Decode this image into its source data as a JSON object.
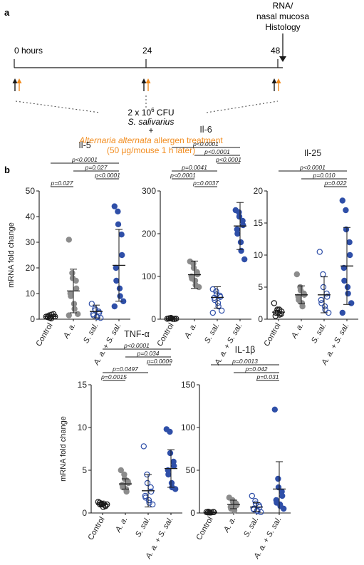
{
  "panel_a": {
    "letter": "a",
    "timepoints": [
      "0 hours",
      "24",
      "48"
    ],
    "endpoint_label_1": "RNA/",
    "endpoint_label_2": "nasal mucosa",
    "endpoint_label_3": "Histology",
    "dose_prefix": "2 x 10",
    "dose_exp": "6",
    "dose_suffix": " CFU",
    "species": "S. salivarius",
    "plus": "+",
    "allergen_species": "Alternaria alternata",
    "allergen_rest": " allergen treatment",
    "allergen_dose": "(50 μg/mouse 1 h later)",
    "colors": {
      "black_arrow": "#1a1a1a",
      "orange_arrow": "#f28c1e",
      "allergen_text": "#f28c1e"
    }
  },
  "panel_b": {
    "letter": "b"
  },
  "y_axis_label": "mRNA fold change",
  "categories": [
    "Control",
    "A. a.",
    "S. sal.",
    "A. a. + S. sal."
  ],
  "category_italic": [
    false,
    true,
    true,
    true
  ],
  "series_style": {
    "Control": {
      "color": "#1a1a1a",
      "fill": "none"
    },
    "A. a.": {
      "color": "#8c8c8c",
      "fill": "#8c8c8c"
    },
    "S. sal.": {
      "color": "#2f4fa8",
      "fill": "none"
    },
    "A. a. + S. sal.": {
      "color": "#2f4fa8",
      "fill": "#2f4fa8"
    }
  },
  "chart_data": [
    {
      "type": "scatter",
      "title": "Il-5",
      "ylabel": "mRNA fold change",
      "ylim": [
        0,
        50
      ],
      "yticks": [
        0,
        10,
        20,
        30,
        40,
        50
      ],
      "categories": [
        "Control",
        "A. a.",
        "S. sal.",
        "A. a. + S. sal."
      ],
      "points": [
        [
          1,
          1.5,
          0.5,
          1,
          2,
          0.8,
          1.2,
          0.3,
          1.8,
          1
        ],
        [
          31,
          18,
          16,
          15,
          12,
          10,
          9,
          6,
          4,
          2,
          1.5
        ],
        [
          6,
          4,
          3.5,
          3,
          2.5,
          2,
          1.5,
          1,
          0.8,
          0.5
        ],
        [
          44,
          42,
          37,
          33,
          25,
          20,
          15,
          12,
          9,
          7,
          5
        ]
      ],
      "mean": [
        1,
        11,
        3,
        21
      ],
      "sd": [
        0.6,
        8.5,
        2.5,
        14
      ],
      "comparisons": [
        {
          "from": 0,
          "to": 3,
          "p": "p<0.0001"
        },
        {
          "from": 1,
          "to": 3,
          "p": "p=0.027"
        },
        {
          "from": 2,
          "to": 3,
          "p": "p<0.0001"
        },
        {
          "from": 0,
          "to": 1,
          "p": "p=0.027"
        }
      ]
    },
    {
      "type": "scatter",
      "title": "Il-6",
      "ylabel": "",
      "ylim": [
        0,
        300
      ],
      "yticks": [
        0,
        100,
        200,
        300
      ],
      "categories": [
        "Control",
        "A. a.",
        "S. sal.",
        "A. a. + S. sal."
      ],
      "points": [
        [
          1,
          2,
          3,
          1,
          0.5,
          1.5,
          2,
          1,
          0.8,
          1.2
        ],
        [
          135,
          130,
          120,
          110,
          105,
          100,
          95,
          90,
          80,
          75
        ],
        [
          70,
          65,
          58,
          55,
          52,
          50,
          45,
          38,
          30,
          20,
          15
        ],
        [
          255,
          250,
          240,
          230,
          220,
          210,
          200,
          180,
          160,
          140
        ]
      ],
      "mean": [
        1,
        104,
        51,
        218
      ],
      "sd": [
        1,
        32,
        25,
        55
      ],
      "comparisons": [
        {
          "from": 0,
          "to": 3,
          "p": "p<0.0001"
        },
        {
          "from": 1,
          "to": 3,
          "p": "p<0.0001"
        },
        {
          "from": 2,
          "to": 3,
          "p": "p<0.0001"
        },
        {
          "from": 0,
          "to": 2,
          "p": "p=0.0041"
        },
        {
          "from": 0,
          "to": 1,
          "p": "p<0.0001"
        },
        {
          "from": 1,
          "to": 2,
          "p": "p=0.0037"
        }
      ]
    },
    {
      "type": "scatter",
      "title": "Il-25",
      "ylabel": "",
      "ylim": [
        0,
        20
      ],
      "yticks": [
        0,
        5,
        10,
        15,
        20
      ],
      "categories": [
        "Control",
        "A. a.",
        "S. sal.",
        "A. a. + S. sal."
      ],
      "points": [
        [
          2.5,
          1.5,
          1,
          0.8,
          1.2,
          0.5,
          1,
          1.5,
          0.7
        ],
        [
          7,
          5,
          4.5,
          4,
          3.8,
          3.5,
          3,
          2.5,
          2
        ],
        [
          10.5,
          7,
          5,
          4,
          3.5,
          3,
          2.5,
          2,
          1.5,
          1
        ],
        [
          18.5,
          17,
          14,
          12,
          10,
          8,
          6,
          5,
          4,
          2.5,
          1
        ]
      ],
      "mean": [
        1.1,
        3.8,
        3.8,
        8.3
      ],
      "sd": [
        0.5,
        1.4,
        2.8,
        6
      ],
      "comparisons": [
        {
          "from": 0,
          "to": 3,
          "p": "p<0.0001"
        },
        {
          "from": 1,
          "to": 3,
          "p": "p=0.010"
        },
        {
          "from": 2,
          "to": 3,
          "p": "p=0.022"
        }
      ]
    },
    {
      "type": "scatter",
      "title": "TNF-α",
      "ylabel": "mRNA fold change",
      "ylim": [
        0,
        15
      ],
      "yticks": [
        0,
        5,
        10,
        15
      ],
      "categories": [
        "Control",
        "A. a.",
        "S. sal.",
        "A. a. + S. sal."
      ],
      "points": [
        [
          1.3,
          1.1,
          1,
          0.9,
          0.8,
          1.2,
          1,
          0.7,
          1.1,
          1
        ],
        [
          5,
          4.5,
          4,
          3.7,
          3.5,
          3.3,
          3,
          2.8,
          2.5
        ],
        [
          7.8,
          4.5,
          3.5,
          3,
          2.5,
          2,
          1.8,
          1.5,
          1.2,
          1
        ],
        [
          9.8,
          9.5,
          7,
          6,
          5.5,
          5,
          4.5,
          3.5,
          3,
          2.8
        ]
      ],
      "mean": [
        1,
        3.4,
        2.6,
        5.2
      ],
      "sd": [
        0.2,
        0.6,
        1.9,
        2.2
      ],
      "comparisons": [
        {
          "from": 0,
          "to": 3,
          "p": "p<0.0001"
        },
        {
          "from": 1,
          "to": 3,
          "p": "p=0.034"
        },
        {
          "from": 2,
          "to": 3,
          "p": "p=0.0009"
        },
        {
          "from": 0,
          "to": 2,
          "p": "p=0.0497"
        },
        {
          "from": 0,
          "to": 1,
          "p": "p=0.0015"
        }
      ]
    },
    {
      "type": "scatter",
      "title": "IL-1β",
      "ylabel": "",
      "ylim": [
        0,
        150
      ],
      "yticks": [
        0,
        50,
        100,
        150
      ],
      "categories": [
        "Control",
        "A. a.",
        "S. sal.",
        "A. a. + S. sal."
      ],
      "points": [
        [
          1,
          0.8,
          0.5,
          1.2,
          1,
          0.6,
          1.5,
          0.7
        ],
        [
          18,
          15,
          13,
          11,
          9,
          7,
          5,
          3
        ],
        [
          20,
          14,
          11,
          9,
          7,
          5,
          4,
          3,
          2,
          1
        ],
        [
          121,
          40,
          30,
          25,
          20,
          15,
          12,
          10,
          8,
          5
        ]
      ],
      "mean": [
        1,
        10,
        7,
        28
      ],
      "sd": [
        0.4,
        5,
        5,
        32
      ],
      "comparisons": [
        {
          "from": 0,
          "to": 3,
          "p": "p=0.0013"
        },
        {
          "from": 1,
          "to": 3,
          "p": "p=0.042"
        },
        {
          "from": 2,
          "to": 3,
          "p": "p=0.031"
        }
      ]
    }
  ]
}
